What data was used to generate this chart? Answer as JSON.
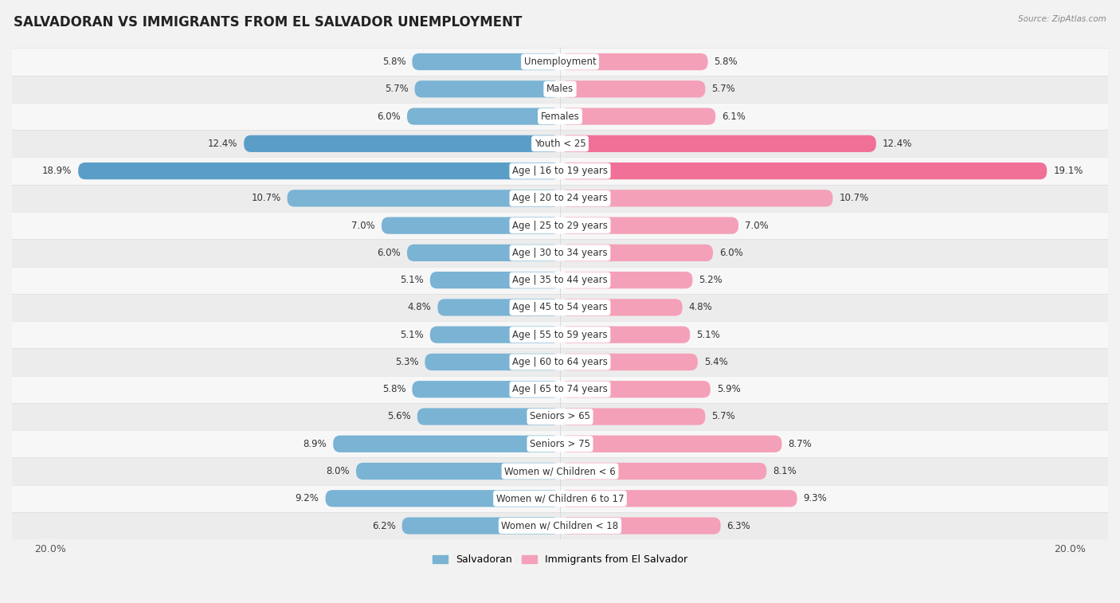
{
  "title": "SALVADORAN VS IMMIGRANTS FROM EL SALVADOR UNEMPLOYMENT",
  "source": "Source: ZipAtlas.com",
  "categories": [
    "Unemployment",
    "Males",
    "Females",
    "Youth < 25",
    "Age | 16 to 19 years",
    "Age | 20 to 24 years",
    "Age | 25 to 29 years",
    "Age | 30 to 34 years",
    "Age | 35 to 44 years",
    "Age | 45 to 54 years",
    "Age | 55 to 59 years",
    "Age | 60 to 64 years",
    "Age | 65 to 74 years",
    "Seniors > 65",
    "Seniors > 75",
    "Women w/ Children < 6",
    "Women w/ Children 6 to 17",
    "Women w/ Children < 18"
  ],
  "salvadoran": [
    5.8,
    5.7,
    6.0,
    12.4,
    18.9,
    10.7,
    7.0,
    6.0,
    5.1,
    4.8,
    5.1,
    5.3,
    5.8,
    5.6,
    8.9,
    8.0,
    9.2,
    6.2
  ],
  "immigrants": [
    5.8,
    5.7,
    6.1,
    12.4,
    19.1,
    10.7,
    7.0,
    6.0,
    5.2,
    4.8,
    5.1,
    5.4,
    5.9,
    5.7,
    8.7,
    8.1,
    9.3,
    6.3
  ],
  "salvadoran_color": "#7ab3d4",
  "immigrants_color": "#f4a0b8",
  "salvadoran_highlight": "#5a9ec8",
  "immigrants_highlight": "#f07098",
  "row_colors": [
    "#f7f7f7",
    "#ececec"
  ],
  "background_color": "#f2f2f2",
  "max_value": 20.0,
  "legend_salvadoran": "Salvadoran",
  "legend_immigrants": "Immigrants from El Salvador",
  "bar_height": 0.62,
  "value_fontsize": 8.5,
  "label_fontsize": 8.5,
  "title_fontsize": 12
}
